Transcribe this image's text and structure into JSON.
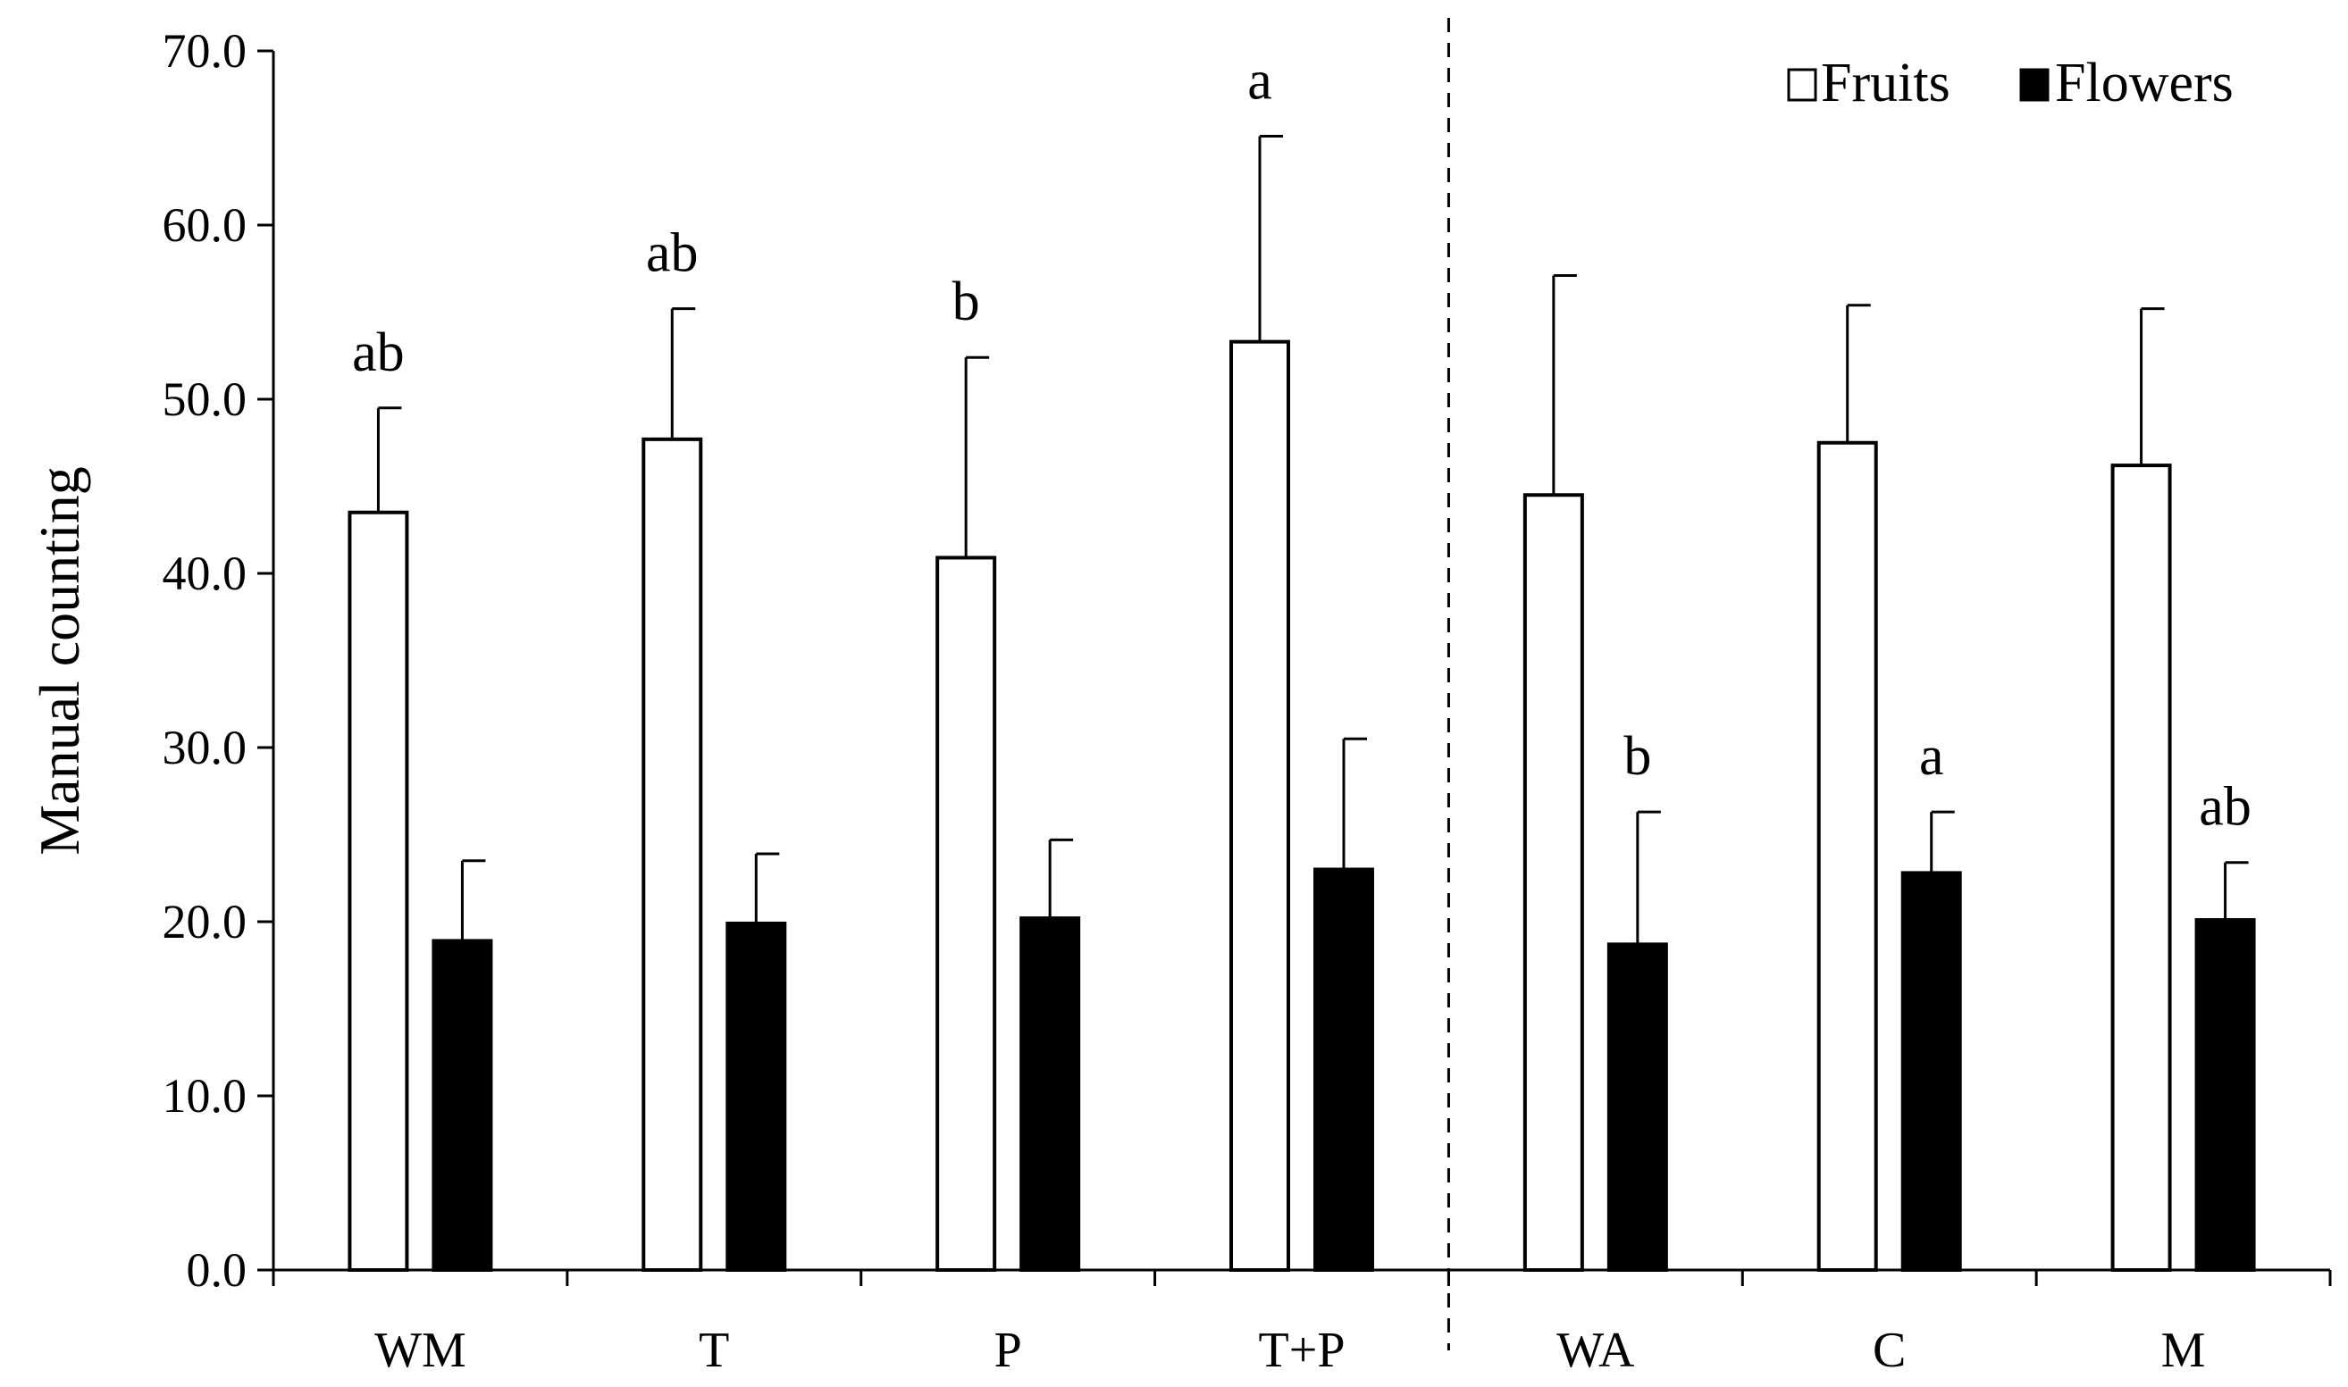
{
  "chart_data": {
    "type": "bar",
    "ylabel": "Manual counting",
    "xlabel": "",
    "ylim": [
      0,
      70
    ],
    "y_ticks": [
      "0.0",
      "10.0",
      "20.0",
      "30.0",
      "40.0",
      "50.0",
      "60.0",
      "70.0"
    ],
    "categories": [
      "WM",
      "T",
      "P",
      "T+P",
      "WA",
      "C",
      "M"
    ],
    "series": [
      {
        "name": "Fruits",
        "color": "#ffffff",
        "values": [
          43.5,
          47.7,
          40.9,
          53.3,
          44.5,
          47.5,
          46.2
        ],
        "error": [
          6.0,
          7.5,
          11.5,
          11.8,
          12.6,
          7.9,
          9.0
        ]
      },
      {
        "name": "Flowers",
        "color": "#000000",
        "values": [
          18.9,
          19.9,
          20.2,
          23.0,
          18.7,
          22.8,
          20.1
        ],
        "error": [
          4.6,
          4.0,
          4.5,
          7.5,
          7.6,
          3.5,
          3.3
        ]
      }
    ],
    "annotations": [
      {
        "category": "WM",
        "series": "Fruits",
        "text": "ab"
      },
      {
        "category": "T",
        "series": "Fruits",
        "text": "ab"
      },
      {
        "category": "P",
        "series": "Fruits",
        "text": "b"
      },
      {
        "category": "T+P",
        "series": "Fruits",
        "text": "a"
      },
      {
        "category": "WA",
        "series": "Flowers",
        "text": "b"
      },
      {
        "category": "C",
        "series": "Flowers",
        "text": "a"
      },
      {
        "category": "M",
        "series": "Flowers",
        "text": "ab"
      }
    ],
    "divider_after_category": "T+P",
    "legend_position": "top-right",
    "grid": false
  }
}
